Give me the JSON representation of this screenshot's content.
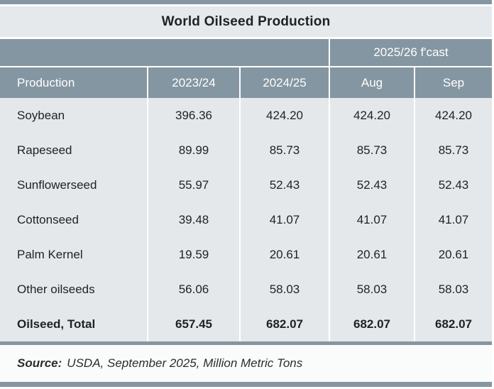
{
  "title": "World Oilseed Production",
  "colors": {
    "accent_blue_gray": "#8496a1",
    "title_band_bg": "#e6e9eb",
    "data_bg": "#e5e8ea",
    "footer_bg": "#fafbfb",
    "header_text": "#ffffff",
    "body_text": "#1f2122"
  },
  "table": {
    "forecast_group_label": "2025/26 f'cast",
    "columns": [
      "Production",
      "2023/24",
      "2024/25",
      "Aug",
      "Sep"
    ],
    "rows": [
      {
        "label": "Soybean",
        "values": [
          "396.36",
          "424.20",
          "424.20",
          "424.20"
        ]
      },
      {
        "label": "Rapeseed",
        "values": [
          "89.99",
          "85.73",
          "85.73",
          "85.73"
        ]
      },
      {
        "label": "Sunflowerseed",
        "values": [
          "55.97",
          "52.43",
          "52.43",
          "52.43"
        ]
      },
      {
        "label": "Cottonseed",
        "values": [
          "39.48",
          "41.07",
          "41.07",
          "41.07"
        ]
      },
      {
        "label": "Palm Kernel",
        "values": [
          "19.59",
          "20.61",
          "20.61",
          "20.61"
        ]
      },
      {
        "label": "Other oilseeds",
        "values": [
          "56.06",
          "58.03",
          "58.03",
          "58.03"
        ]
      },
      {
        "label": "Oilseed, Total",
        "values": [
          "657.45",
          "682.07",
          "682.07",
          "682.07"
        ]
      }
    ]
  },
  "footer": {
    "source_prefix": "Source:",
    "source_text": "USDA, September 2025, Million Metric Tons"
  }
}
